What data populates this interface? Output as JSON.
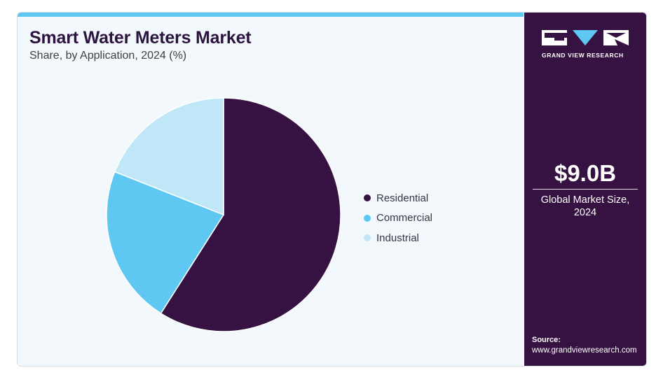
{
  "header": {
    "title": "Smart Water Meters Market",
    "subtitle": "Share, by Application, 2024 (%)"
  },
  "chart_data": {
    "type": "pie",
    "categories": [
      "Residential",
      "Commercial",
      "Industrial"
    ],
    "values": [
      59,
      22,
      19
    ],
    "colors": [
      "#361242",
      "#5ec8f2",
      "#bfe7f8"
    ],
    "legend_position": "right"
  },
  "sidebar": {
    "logo_text": "GRAND VIEW RESEARCH",
    "market_size_value": "$9.0B",
    "market_size_label_line1": "Global Market Size,",
    "market_size_label_line2": "2024",
    "source_label": "Source:",
    "source_url": "www.grandviewresearch.com",
    "background_color": "#361242"
  }
}
